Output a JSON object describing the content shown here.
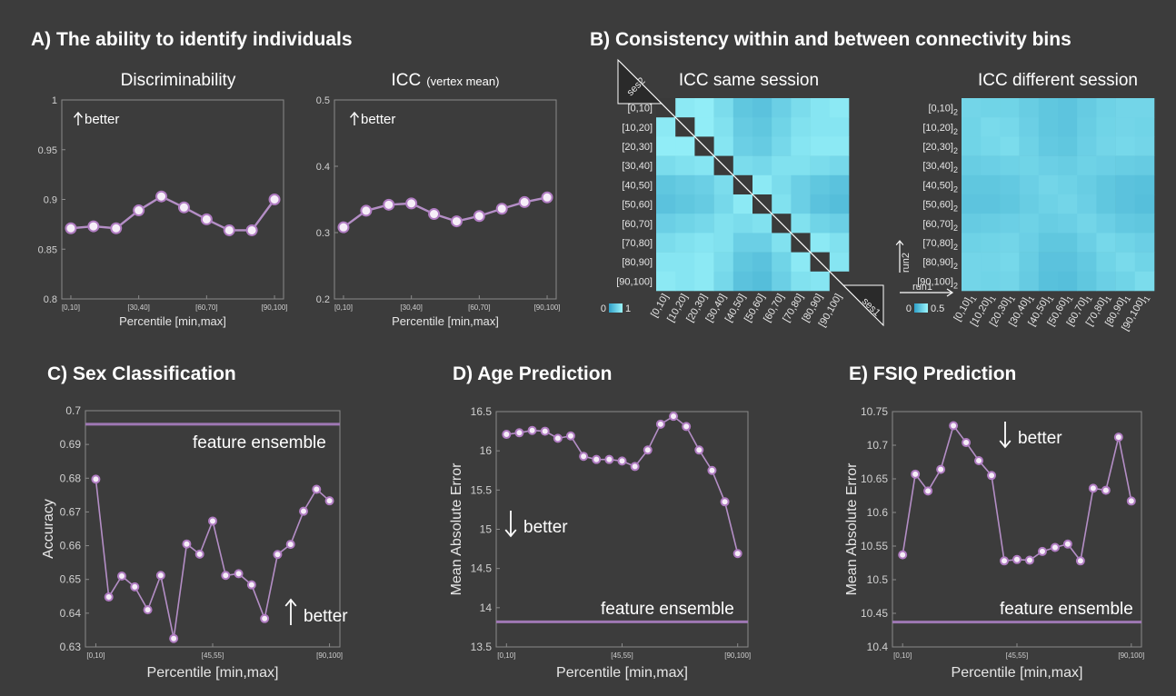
{
  "section_a": {
    "title": "A) The ability to identify individuals"
  },
  "section_b": {
    "title": "B) Consistency within and between connectivity bins"
  },
  "colors": {
    "line": "#b48ec6",
    "marker_fill": "#f6eef8",
    "marker_stroke": "#b07cc2",
    "ensemble": "#9f78b4",
    "plot_bg": "#3c3c3c",
    "axis": "#8a8a8a",
    "cmap_low": "#2fa0c8",
    "cmap_high": "#9cf6fc"
  },
  "chart_data": [
    {
      "id": "disc",
      "type": "line",
      "title": "Discriminability",
      "xlabel": "Percentile [min,max]",
      "ylabel": "",
      "ylim": [
        0.8,
        1
      ],
      "yticks": [
        "1",
        "0.95",
        "0.9",
        "0.85",
        "0.8"
      ],
      "x_tick_labels": [
        "[0,10]",
        "[30,40]",
        "[60,70]",
        "[90,100]"
      ],
      "annotation": "better",
      "annotation_dir": "up",
      "x": [
        1,
        2,
        3,
        4,
        5,
        6,
        7,
        8,
        9,
        10
      ],
      "values": [
        0.871,
        0.873,
        0.871,
        0.889,
        0.903,
        0.892,
        0.88,
        0.869,
        0.869,
        0.9
      ]
    },
    {
      "id": "icc",
      "type": "line",
      "title": "ICC",
      "title_suffix": "(vertex mean)",
      "xlabel": "Percentile [min,max]",
      "ylabel": "",
      "ylim": [
        0.2,
        0.5
      ],
      "yticks": [
        "0.5",
        "0.4",
        "0.3",
        "0.2"
      ],
      "x_tick_labels": [
        "[0,10]",
        "[30,40]",
        "[60,70]",
        "[90,100]"
      ],
      "annotation": "better",
      "annotation_dir": "up",
      "x": [
        1,
        2,
        3,
        4,
        5,
        6,
        7,
        8,
        9,
        10
      ],
      "values": [
        0.308,
        0.333,
        0.342,
        0.344,
        0.328,
        0.317,
        0.325,
        0.336,
        0.346,
        0.353
      ]
    },
    {
      "id": "icc_same",
      "type": "heatmap",
      "title": "ICC same session",
      "row_labels": [
        "[0,10]",
        "[10,20]",
        "[20,30]",
        "[30,40]",
        "[40,50]",
        "[50,60]",
        "[60,70]",
        "[70,80]",
        "[80,90]",
        "[90,100]"
      ],
      "col_labels": [
        "[0,10]",
        "[10,20]",
        "[20,30]",
        "[30,40]",
        "[40,50]",
        "[50,60]",
        "[60,70]",
        "[70,80]",
        "[80,90]",
        "[90,100]"
      ],
      "corner_top": "ses2",
      "corner_bottom": "ses1",
      "colorbar_min": "0",
      "colorbar_max": "1",
      "values": [
        [
          0.0,
          0.85,
          0.9,
          0.7,
          0.45,
          0.4,
          0.55,
          0.7,
          0.8,
          0.85
        ],
        [
          0.85,
          0.0,
          0.9,
          0.75,
          0.5,
          0.45,
          0.6,
          0.75,
          0.8,
          0.8
        ],
        [
          0.9,
          0.9,
          0.0,
          0.8,
          0.55,
          0.5,
          0.65,
          0.8,
          0.85,
          0.85
        ],
        [
          0.7,
          0.75,
          0.8,
          0.0,
          0.7,
          0.65,
          0.75,
          0.75,
          0.7,
          0.65
        ],
        [
          0.45,
          0.5,
          0.55,
          0.7,
          0.0,
          0.85,
          0.7,
          0.55,
          0.45,
          0.4
        ],
        [
          0.4,
          0.45,
          0.5,
          0.65,
          0.85,
          0.0,
          0.75,
          0.55,
          0.4,
          0.35
        ],
        [
          0.55,
          0.6,
          0.65,
          0.75,
          0.7,
          0.75,
          0.0,
          0.75,
          0.6,
          0.55
        ],
        [
          0.7,
          0.75,
          0.8,
          0.75,
          0.55,
          0.55,
          0.75,
          0.0,
          0.85,
          0.75
        ],
        [
          0.8,
          0.8,
          0.85,
          0.7,
          0.45,
          0.4,
          0.6,
          0.85,
          0.0,
          0.8
        ],
        [
          0.85,
          0.8,
          0.85,
          0.65,
          0.4,
          0.35,
          0.55,
          0.75,
          0.8,
          0.0
        ]
      ]
    },
    {
      "id": "icc_diff",
      "type": "heatmap",
      "title": "ICC different session",
      "row_labels": [
        "[0,10]",
        "[10,20]",
        "[20,30]",
        "[30,40]",
        "[40,50]",
        "[50,60]",
        "[60,70]",
        "[70,80]",
        "[80,90]",
        "[90,100]"
      ],
      "row_subscript": "2",
      "col_labels": [
        "[0,10]",
        "[10,20]",
        "[20,30]",
        "[30,40]",
        "[40,50]",
        "[50,60]",
        "[60,70]",
        "[70,80]",
        "[80,90]",
        "[90,100]"
      ],
      "col_subscript": "1",
      "axis_row_name": "run2",
      "axis_col_name": "run1",
      "colorbar_min": "0",
      "colorbar_max": "0.5",
      "values": [
        [
          0.62,
          0.6,
          0.6,
          0.52,
          0.45,
          0.42,
          0.5,
          0.58,
          0.62,
          0.62
        ],
        [
          0.6,
          0.68,
          0.65,
          0.55,
          0.45,
          0.42,
          0.52,
          0.6,
          0.62,
          0.6
        ],
        [
          0.6,
          0.65,
          0.7,
          0.58,
          0.48,
          0.45,
          0.55,
          0.62,
          0.65,
          0.62
        ],
        [
          0.52,
          0.55,
          0.58,
          0.6,
          0.55,
          0.52,
          0.58,
          0.55,
          0.52,
          0.5
        ],
        [
          0.45,
          0.45,
          0.48,
          0.55,
          0.62,
          0.58,
          0.52,
          0.45,
          0.4,
          0.38
        ],
        [
          0.42,
          0.42,
          0.45,
          0.52,
          0.58,
          0.62,
          0.55,
          0.45,
          0.4,
          0.36
        ],
        [
          0.5,
          0.52,
          0.55,
          0.58,
          0.52,
          0.55,
          0.62,
          0.55,
          0.48,
          0.45
        ],
        [
          0.58,
          0.6,
          0.62,
          0.55,
          0.45,
          0.45,
          0.55,
          0.65,
          0.6,
          0.55
        ],
        [
          0.62,
          0.62,
          0.65,
          0.52,
          0.4,
          0.4,
          0.48,
          0.6,
          0.68,
          0.6
        ],
        [
          0.62,
          0.6,
          0.62,
          0.5,
          0.38,
          0.36,
          0.45,
          0.55,
          0.6,
          0.7
        ]
      ]
    },
    {
      "id": "sex",
      "type": "line",
      "title": "C) Sex Classification",
      "xlabel": "Percentile [min,max]",
      "ylabel": "Accuracy",
      "ylim": [
        0.63,
        0.7
      ],
      "yticks": [
        "0.7",
        "0.69",
        "0.68",
        "0.67",
        "0.66",
        "0.65",
        "0.64",
        "0.63"
      ],
      "x_tick_labels": [
        "[0,10]",
        "[45,55]",
        "[90,100]"
      ],
      "ensemble_value": 0.696,
      "ensemble_label": "feature ensemble",
      "annotation": "better",
      "annotation_dir": "up",
      "x": [
        0,
        5,
        10,
        15,
        20,
        25,
        30,
        35,
        40,
        45,
        50,
        55,
        60,
        65,
        70,
        75,
        80,
        85,
        90
      ],
      "values": [
        0.6797,
        0.6448,
        0.651,
        0.6478,
        0.641,
        0.6512,
        0.6325,
        0.6605,
        0.6575,
        0.6673,
        0.6512,
        0.6517,
        0.6484,
        0.6384,
        0.6574,
        0.6604,
        0.6702,
        0.6767,
        0.6733
      ]
    },
    {
      "id": "age",
      "type": "line",
      "title": "D) Age Prediction",
      "xlabel": "Percentile [min,max]",
      "ylabel": "Mean Absolute Error",
      "ylim": [
        13.5,
        16.5
      ],
      "yticks": [
        "16.5",
        "16",
        "15.5",
        "15",
        "14.5",
        "14",
        "13.5"
      ],
      "x_tick_labels": [
        "[0,10]",
        "[45,55]",
        "[90,100]"
      ],
      "ensemble_value": 13.82,
      "ensemble_label": "feature ensemble",
      "annotation": "better",
      "annotation_dir": "down",
      "x": [
        0,
        5,
        10,
        15,
        20,
        25,
        30,
        35,
        40,
        45,
        50,
        55,
        60,
        65,
        70,
        75,
        80,
        85,
        90
      ],
      "values": [
        16.21,
        16.23,
        16.26,
        16.25,
        16.16,
        16.19,
        15.93,
        15.89,
        15.89,
        15.87,
        15.8,
        16.01,
        16.34,
        16.44,
        16.31,
        16.01,
        15.75,
        15.35,
        14.69
      ]
    },
    {
      "id": "fsiq",
      "type": "line",
      "title": "E) FSIQ Prediction",
      "xlabel": "Percentile [min,max]",
      "ylabel": "Mean Absolute Error",
      "ylim": [
        10.4,
        10.75
      ],
      "yticks": [
        "10.75",
        "10.7",
        "10.65",
        "10.6",
        "10.55",
        "10.5",
        "10.45",
        "10.4"
      ],
      "x_tick_labels": [
        "[0,10]",
        "[45,55]",
        "[90,100]"
      ],
      "ensemble_value": 10.437,
      "ensemble_label": "feature ensemble",
      "annotation": "better",
      "annotation_dir": "down",
      "x": [
        0,
        5,
        10,
        15,
        20,
        25,
        30,
        35,
        40,
        45,
        50,
        55,
        60,
        65,
        70,
        75,
        80,
        85,
        90
      ],
      "values": [
        10.537,
        10.657,
        10.632,
        10.664,
        10.729,
        10.704,
        10.677,
        10.655,
        10.528,
        10.53,
        10.529,
        10.542,
        10.548,
        10.553,
        10.528,
        10.636,
        10.633,
        10.712,
        10.617
      ]
    }
  ]
}
